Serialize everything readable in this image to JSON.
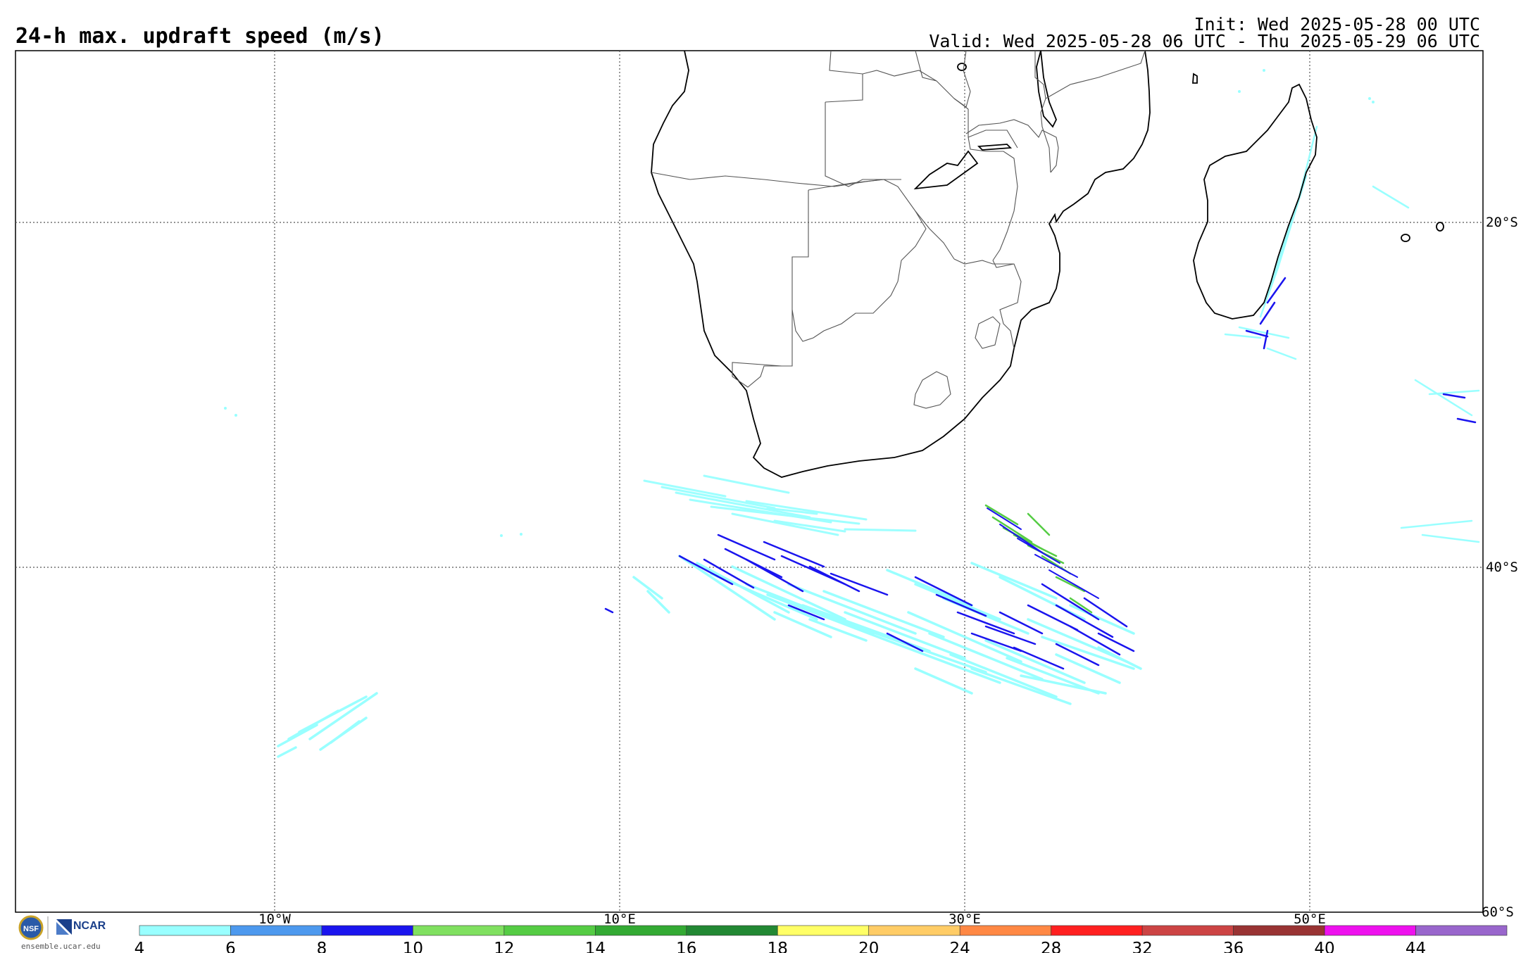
{
  "header": {
    "title": "24-h max. updraft speed (m/s)",
    "init": "Init: Wed 2025-05-28 00 UTC",
    "valid": "Valid: Wed 2025-05-28 06 UTC - Thu 2025-05-29 06 UTC"
  },
  "axes": {
    "lon_labels": [
      "10°W",
      "10°E",
      "30°E",
      "50°E"
    ],
    "lat_labels": [
      "20°S",
      "40°S",
      "60°S"
    ]
  },
  "colorbar": {
    "ticks": [
      "4",
      "6",
      "8",
      "10",
      "12",
      "14",
      "16",
      "18",
      "20",
      "24",
      "28",
      "32",
      "36",
      "40",
      "44"
    ],
    "colors": [
      "#99ffff",
      "#4d99ee",
      "#1a14ee",
      "#80e060",
      "#55cc44",
      "#33aa33",
      "#228833",
      "#ffff66",
      "#ffcc66",
      "#ff8844",
      "#ff2020",
      "#cc4444",
      "#993333",
      "#ee11ee",
      "#9966cc"
    ]
  },
  "logos": {
    "nsf": "NSF",
    "ncar": "NCAR",
    "credit": "ensemble.ucar.edu"
  }
}
